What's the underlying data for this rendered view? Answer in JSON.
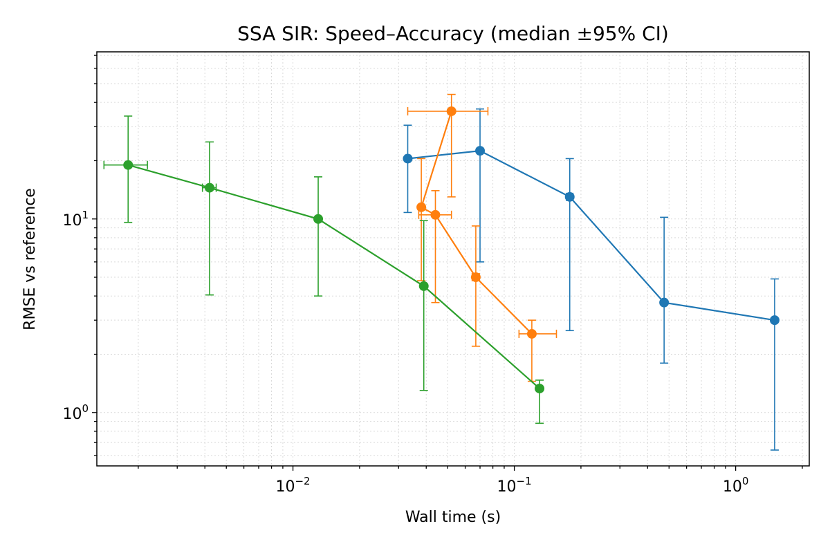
{
  "chart_data": {
    "type": "scatter",
    "title": "SSA SIR: Speed–Accuracy (median ±95% CI)",
    "xlabel": "Wall time (s)",
    "ylabel": "RMSE vs reference",
    "xscale": "log",
    "yscale": "log",
    "xlim": [
      0.0013,
      2.15
    ],
    "ylim": [
      0.53,
      73
    ],
    "grid": "on",
    "x_major_ticks": [
      {
        "value": 0.01,
        "base": "10",
        "exp": "−2"
      },
      {
        "value": 0.1,
        "base": "10",
        "exp": "−1"
      },
      {
        "value": 1,
        "base": "10",
        "exp": "0"
      }
    ],
    "y_major_ticks": [
      {
        "value": 1,
        "base": "10",
        "exp": "0"
      },
      {
        "value": 10,
        "base": "10",
        "exp": "1"
      }
    ],
    "series": [
      {
        "color": "#1f77b4",
        "points": [
          {
            "x": 0.033,
            "y": 20.5,
            "xlo": 0.0322,
            "xhi": 0.0338,
            "ylo": 10.8,
            "yhi": 30.5
          },
          {
            "x": 0.07,
            "y": 22.5,
            "xlo": 0.0685,
            "xhi": 0.0715,
            "ylo": 6.0,
            "yhi": 37.0
          },
          {
            "x": 0.178,
            "y": 13.0,
            "xlo": 0.172,
            "xhi": 0.184,
            "ylo": 2.65,
            "yhi": 20.5
          },
          {
            "x": 0.475,
            "y": 3.7,
            "xlo": 0.47,
            "xhi": 0.48,
            "ylo": 1.8,
            "yhi": 10.2
          },
          {
            "x": 1.5,
            "y": 3.0,
            "xlo": 1.49,
            "xhi": 1.51,
            "ylo": 0.64,
            "yhi": 4.9
          }
        ]
      },
      {
        "color": "#ff7f0e",
        "points": [
          {
            "x": 0.052,
            "y": 36.0,
            "xlo": 0.033,
            "xhi": 0.076,
            "ylo": 13.0,
            "yhi": 44.0
          },
          {
            "x": 0.038,
            "y": 11.5,
            "xlo": 0.0375,
            "xhi": 0.0385,
            "ylo": 4.8,
            "yhi": 20.5
          },
          {
            "x": 0.044,
            "y": 10.5,
            "xlo": 0.037,
            "xhi": 0.052,
            "ylo": 3.7,
            "yhi": 14.0
          },
          {
            "x": 0.067,
            "y": 5.0,
            "xlo": 0.0645,
            "xhi": 0.0695,
            "ylo": 2.2,
            "yhi": 9.2
          },
          {
            "x": 0.12,
            "y": 2.55,
            "xlo": 0.105,
            "xhi": 0.155,
            "ylo": 1.45,
            "yhi": 3.0
          }
        ]
      },
      {
        "color": "#2ca02c",
        "points": [
          {
            "x": 0.0018,
            "y": 19.0,
            "xlo": 0.0014,
            "xhi": 0.0022,
            "ylo": 9.6,
            "yhi": 34.0
          },
          {
            "x": 0.0042,
            "y": 14.5,
            "xlo": 0.0039,
            "xhi": 0.0045,
            "ylo": 4.05,
            "yhi": 25.0
          },
          {
            "x": 0.013,
            "y": 10.0,
            "xlo": 0.0129,
            "xhi": 0.0131,
            "ylo": 4.0,
            "yhi": 16.5
          },
          {
            "x": 0.039,
            "y": 4.5,
            "xlo": 0.0388,
            "xhi": 0.0392,
            "ylo": 1.3,
            "yhi": 9.8
          },
          {
            "x": 0.13,
            "y": 1.33,
            "xlo": 0.129,
            "xhi": 0.131,
            "ylo": 0.88,
            "yhi": 1.47
          }
        ]
      }
    ]
  }
}
